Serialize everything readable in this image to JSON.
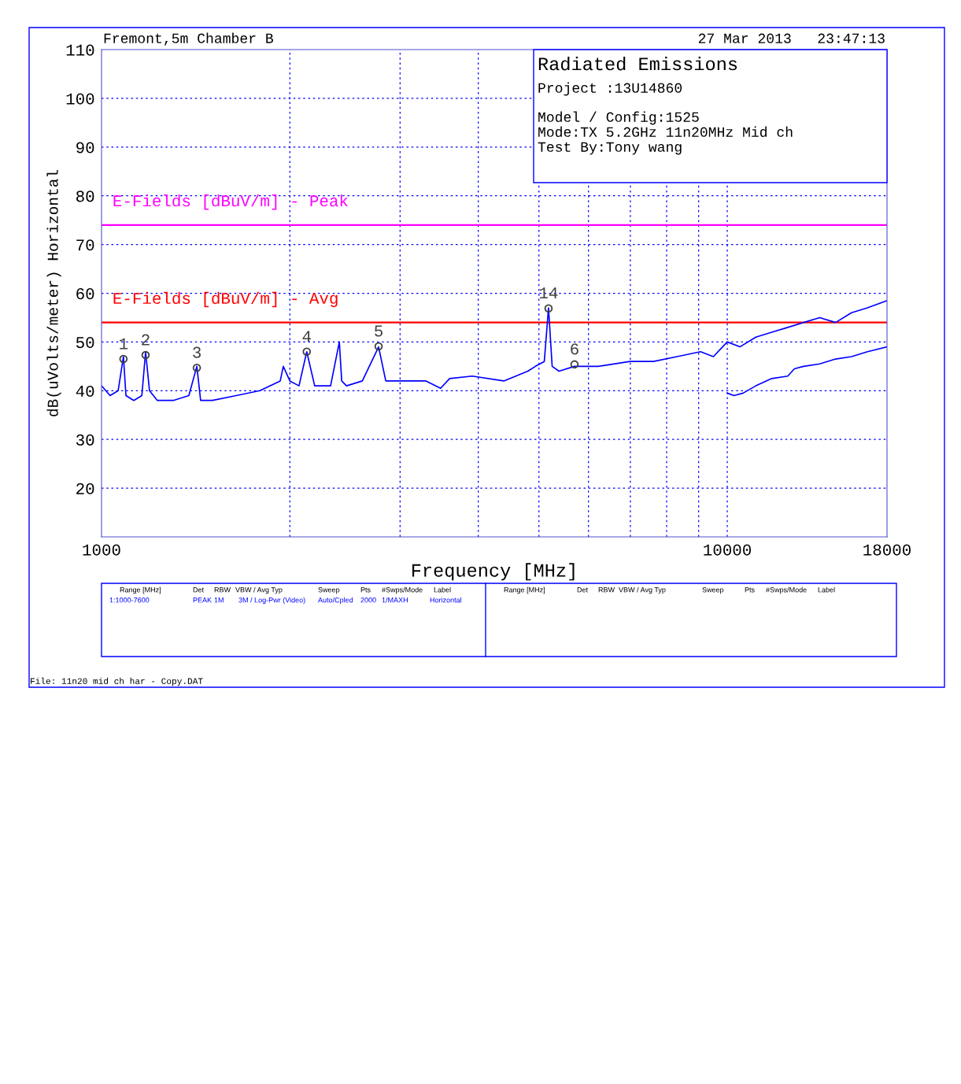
{
  "chart_data": {
    "type": "line",
    "title": "Fremont,5m Chamber B",
    "xlabel": "Frequency [MHz]",
    "ylabel": "dB(uVolts/meter) Horizontal",
    "log": "x",
    "xlim": [
      1000,
      18000
    ],
    "ylim": [
      10,
      110
    ],
    "xticks": [
      1000,
      {
        "value": 2000,
        "label": null
      },
      {
        "value": 3000,
        "label": null
      },
      {
        "value": 4000,
        "label": null
      },
      {
        "value": 5000,
        "label": null
      },
      {
        "value": 6000,
        "label": null
      },
      {
        "value": 7000,
        "label": null
      },
      {
        "value": 8000,
        "label": null
      },
      {
        "value": 9000,
        "label": null
      },
      10000,
      18000
    ],
    "yticks": [
      20,
      30,
      40,
      50,
      60,
      70,
      80,
      90,
      100,
      110
    ],
    "grid": true,
    "line_style": "solid",
    "series": [
      {
        "color": "#0000ff",
        "x": [
          1000,
          1032,
          1063,
          1084,
          1094,
          1126,
          1160,
          1176,
          1193,
          1228,
          1302,
          1379,
          1420,
          1440,
          1504,
          1642,
          1791,
          1930,
          1952,
          2000,
          2068,
          2128,
          2191,
          2323,
          2399,
          2420,
          2463,
          2611,
          2772,
          2846,
          3098,
          3300,
          3482,
          3600,
          3911,
          4394,
          4800,
          4936,
          5100,
          5180,
          5250,
          5384,
          5700,
          6218,
          6994,
          7624,
          8313,
          9064,
          9500,
          10000,
          10476,
          11109,
          11780,
          12493,
          13248,
          14049,
          14897,
          15797,
          16752,
          18000
        ],
        "values": [
          41,
          39,
          40,
          47,
          39,
          38,
          39,
          48,
          40,
          38,
          38,
          39,
          45,
          38,
          38,
          39,
          40,
          42,
          45,
          42,
          41,
          48,
          41,
          41,
          50,
          42,
          41,
          42,
          49,
          42,
          42,
          42,
          40.5,
          42.5,
          43,
          42,
          44,
          45,
          46,
          57,
          45,
          44,
          45,
          45,
          46,
          46,
          47,
          48,
          47,
          50,
          49,
          51,
          52,
          53,
          54,
          55,
          54,
          56,
          57,
          58.5
        ]
      },
      {
        "color": "#0000ff",
        "x": [
          10000,
          10250,
          10600,
          11109,
          11780,
          12493,
          12800,
          13248,
          14049,
          14897,
          15797,
          16752,
          18000
        ],
        "values": [
          39.5,
          39,
          39.5,
          41,
          42.5,
          43,
          44.5,
          45,
          45.5,
          46.5,
          47,
          48,
          49
        ]
      },
      {
        "type": "scatter",
        "color": "#404040",
        "marker": "circle",
        "x": [
          1084,
          1176,
          1420,
          2128,
          2772,
          5180,
          5700
        ],
        "values": [
          46.5,
          47.3,
          44.7,
          48,
          49.1,
          56.9,
          45.4
        ]
      }
    ],
    "ref_lines": [
      {
        "axis": "y",
        "value": 74,
        "label": "E-Fields [dBuV/m] - Peak",
        "color": "#ff00ff"
      },
      {
        "axis": "y",
        "value": 54,
        "label": "E-Fields [dBuV/m] - Avg",
        "color": "#ff0000"
      }
    ],
    "annotations": [
      "27 Mar 2013   23:47:13",
      "Radiated Emissions",
      "Project :13U14860",
      "Model / Config:1525",
      "Mode:TX 5.2GHz 11n20MHz Mid ch",
      "Test By:Tony wang",
      "Range [MHz]",
      "Det",
      "RBW",
      "VBW / Avg Typ",
      "Sweep",
      "Pts",
      "#Swps/Mode",
      "Label",
      "1:1000-7600",
      "PEAK",
      "1M",
      "3M / Log-Pwr (Video)",
      "Auto/Cpled",
      "2000",
      "1/MAXH",
      "Horizontal",
      "Range [MHz]",
      "Det",
      "RBW",
      "VBW / Avg Typ",
      "Sweep",
      "Pts",
      "#Swps/Mode",
      "Label",
      "File: 11n20 mid ch har - Copy.DAT",
      {
        "text": "1",
        "x": 1084,
        "y": 46.5
      },
      {
        "text": "2",
        "x": 1176,
        "y": 47.3
      },
      {
        "text": "3",
        "x": 1420,
        "y": 44.7
      },
      {
        "text": "4",
        "x": 2128,
        "y": 48
      },
      {
        "text": "5",
        "x": 2772,
        "y": 49.1
      },
      {
        "text": "14",
        "x": 5180,
        "y": 56.9
      },
      {
        "text": "6",
        "x": 5700,
        "y": 45.4
      }
    ]
  }
}
